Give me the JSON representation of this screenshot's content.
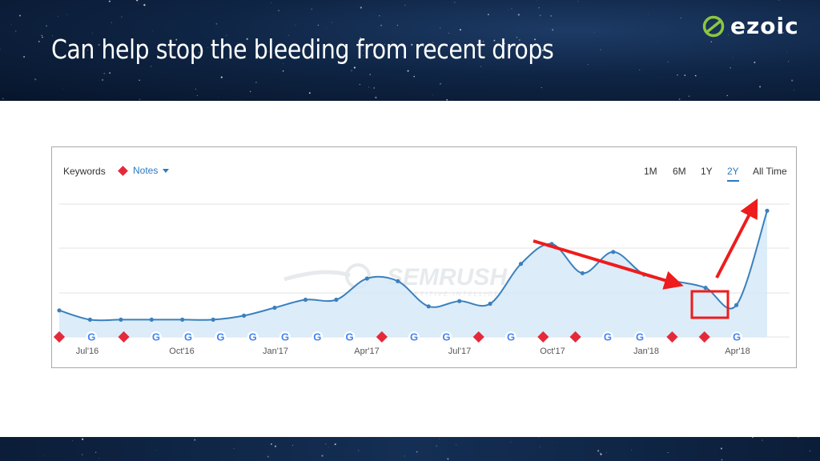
{
  "slide": {
    "title": "Can help stop the bleeding from recent drops",
    "logo_text": "ezoic"
  },
  "toolbar": {
    "keywords_label": "Keywords",
    "notes_label": "Notes",
    "ranges": [
      {
        "label": "1M",
        "active": false
      },
      {
        "label": "6M",
        "active": false
      },
      {
        "label": "1Y",
        "active": false
      },
      {
        "label": "2Y",
        "active": true
      },
      {
        "label": "All Time",
        "active": false
      }
    ]
  },
  "watermark": {
    "brand": "SEMRUSH",
    "tagline": "COMPETITIVE INTELLIGENCE"
  },
  "colors": {
    "line": "#3a80bd",
    "area": "#d6e9f8",
    "note_marker": "#e5293a",
    "annotation": "#ee1c1c",
    "accent": "#2a7ac0",
    "logo_mark": "#8dc63f"
  },
  "chart_data": {
    "type": "area",
    "title": "",
    "xlabel": "",
    "ylabel": "",
    "x_tick_labels": [
      "Jul'16",
      "Oct'16",
      "Jan'17",
      "Apr'17",
      "Jul'17",
      "Oct'17",
      "Jan'18",
      "Apr'18"
    ],
    "ylim": [
      0,
      100
    ],
    "grid": true,
    "series": [
      {
        "values": [
          20,
          13,
          13,
          13,
          13,
          13,
          16,
          22,
          28,
          28,
          44,
          42,
          23,
          27,
          25,
          55,
          70,
          48,
          64,
          47,
          42,
          37,
          24,
          95
        ]
      }
    ],
    "event_markers": [
      "note",
      "google",
      "note",
      "google",
      "google",
      "google",
      "google",
      "google",
      "google",
      "google",
      "note",
      "google",
      "google",
      "note",
      "google",
      "note",
      "note",
      "google",
      "google",
      "note",
      "note",
      "google"
    ],
    "annotations": [
      {
        "type": "arrow",
        "direction": "down",
        "description": "decline"
      },
      {
        "type": "box",
        "description": "lowest recent point"
      },
      {
        "type": "arrow",
        "direction": "up",
        "description": "recovery"
      }
    ]
  }
}
